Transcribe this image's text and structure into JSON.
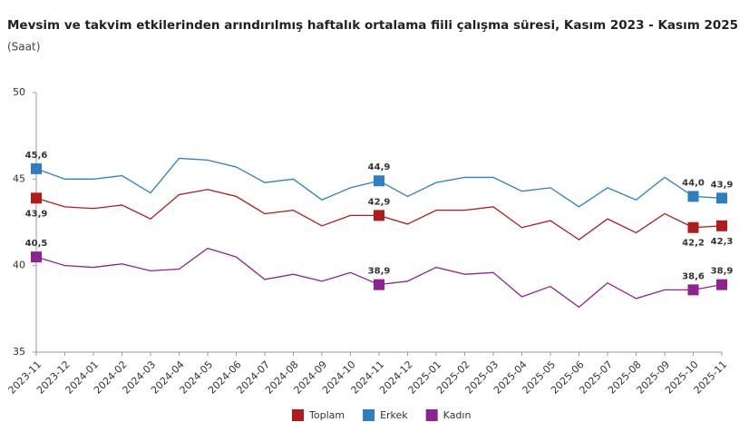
{
  "chart_data": {
    "type": "line",
    "title": "Mevsim ve takvim etkilerinden arındırılmış haftalık ortalama fiili çalışma süresi, Kasım 2023 - Kasım 2025",
    "subtitle": "(Saat)",
    "categories": [
      "2023-11",
      "2023-12",
      "2024-01",
      "2024-02",
      "2024-03",
      "2024-04",
      "2024-05",
      "2024-06",
      "2024-07",
      "2024-08",
      "2024-09",
      "2024-10",
      "2024-11",
      "2024-12",
      "2025-01",
      "2025-02",
      "2025-03",
      "2025-04",
      "2025-05",
      "2025-06",
      "2025-07",
      "2025-08",
      "2025-09",
      "2025-10",
      "2025-11"
    ],
    "series": [
      {
        "name": "Toplam",
        "color": "#b01c1c",
        "values": [
          43.9,
          43.4,
          43.3,
          43.5,
          42.7,
          44.1,
          44.4,
          44.0,
          43.0,
          43.2,
          42.3,
          42.9,
          42.9,
          42.4,
          43.2,
          43.2,
          43.4,
          42.2,
          42.6,
          41.5,
          42.7,
          41.9,
          43.0,
          42.2,
          42.3
        ],
        "value_labels": [
          "43,9",
          null,
          null,
          null,
          null,
          null,
          null,
          null,
          null,
          null,
          null,
          null,
          "42,9",
          null,
          null,
          null,
          null,
          null,
          null,
          null,
          null,
          null,
          null,
          "42,2",
          "42,3"
        ]
      },
      {
        "name": "Erkek",
        "color": "#2e7fc1",
        "values": [
          45.6,
          45.0,
          45.0,
          45.2,
          44.2,
          46.2,
          46.1,
          45.7,
          44.8,
          45.0,
          43.8,
          44.5,
          44.9,
          44.0,
          44.8,
          45.1,
          45.1,
          44.3,
          44.5,
          43.4,
          44.5,
          43.8,
          45.1,
          44.0,
          43.9
        ],
        "value_labels": [
          "45,6",
          null,
          null,
          null,
          null,
          null,
          null,
          null,
          null,
          null,
          null,
          null,
          "44,9",
          null,
          null,
          null,
          null,
          null,
          null,
          null,
          null,
          null,
          null,
          "44,0",
          "43,9"
        ]
      },
      {
        "name": "Kadın",
        "color": "#8e2390",
        "values": [
          40.5,
          40.0,
          39.9,
          40.1,
          39.7,
          39.8,
          41.0,
          40.5,
          39.2,
          39.5,
          39.1,
          39.6,
          38.9,
          39.1,
          39.9,
          39.5,
          39.6,
          38.2,
          38.8,
          37.6,
          39.0,
          38.1,
          38.6,
          38.6,
          38.9
        ],
        "value_labels": [
          "40,5",
          null,
          null,
          null,
          null,
          null,
          null,
          null,
          null,
          null,
          null,
          null,
          "38,9",
          null,
          null,
          null,
          null,
          null,
          null,
          null,
          null,
          null,
          null,
          "38,6",
          "38,9"
        ]
      }
    ],
    "ylim": [
      35,
      50
    ],
    "yticks": [
      35,
      40,
      45,
      50
    ],
    "legend": "bottom"
  }
}
